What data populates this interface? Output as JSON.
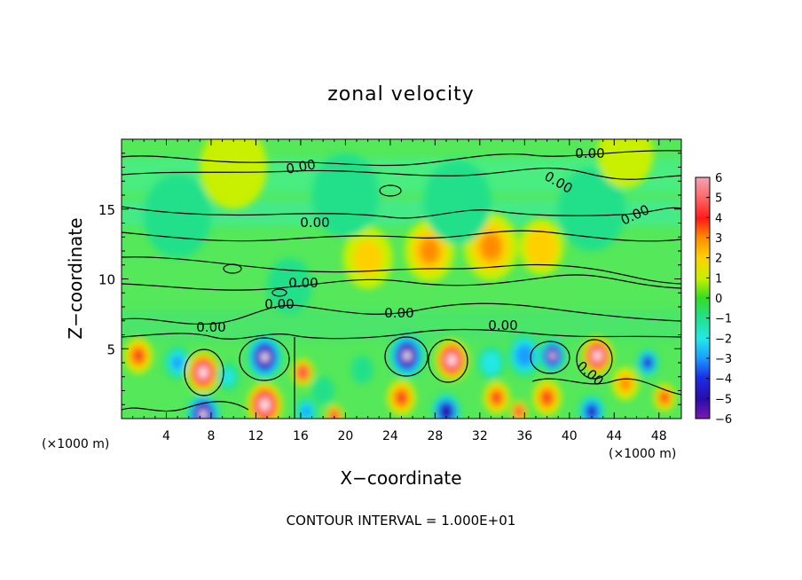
{
  "chart_data": {
    "type": "heatmap",
    "title": "zonal velocity",
    "xlabel": "X−coordinate",
    "ylabel": "Z−coordinate",
    "x_unit_left": "(×1000 m)",
    "x_unit_right": "(×1000 m)",
    "footer": "CONTOUR INTERVAL = 1.000E+01",
    "xlim": [
      0,
      50
    ],
    "ylim": [
      0,
      20
    ],
    "x_ticks": [
      4,
      8,
      12,
      16,
      20,
      24,
      28,
      32,
      36,
      40,
      44,
      48
    ],
    "y_ticks": [
      5,
      10,
      15
    ],
    "colorbar": {
      "range": [
        -6,
        6
      ],
      "ticks": [
        6,
        5,
        4,
        3,
        2,
        1,
        0,
        -1,
        -2,
        -3,
        -4,
        -5,
        -6
      ],
      "tick_labels": [
        "6",
        "5",
        "4",
        "3",
        "2",
        "1",
        "0",
        "−1",
        "−2",
        "−3",
        "−4",
        "−5",
        "−6"
      ]
    },
    "contour_label": "0.00",
    "contour_label_count": 13,
    "blobs": [
      {
        "x": 1.5,
        "z": 4.5,
        "v": 3.5,
        "r": 1.3
      },
      {
        "x": 5.0,
        "z": 4.0,
        "v": -3.0,
        "r": 1.2
      },
      {
        "x": 7.3,
        "z": 3.3,
        "v": 6.5,
        "r": 1.5
      },
      {
        "x": 7.3,
        "z": 0.3,
        "v": -6.5,
        "r": 1.5
      },
      {
        "x": 9.5,
        "z": 3.0,
        "v": -2.0,
        "r": 1.0
      },
      {
        "x": 12.8,
        "z": 4.4,
        "v": -6.5,
        "r": 1.6
      },
      {
        "x": 12.8,
        "z": 1.0,
        "v": 6.5,
        "r": 1.6
      },
      {
        "x": 16.2,
        "z": 3.3,
        "v": 4.5,
        "r": 1.0
      },
      {
        "x": 16.5,
        "z": 0.5,
        "v": -3.0,
        "r": 1.0
      },
      {
        "x": 18.0,
        "z": 2.0,
        "v": -1.5,
        "r": 1.0
      },
      {
        "x": 19.0,
        "z": 0.2,
        "v": 5.0,
        "r": 0.8
      },
      {
        "x": 21.5,
        "z": 3.5,
        "v": -1.5,
        "r": 1.0
      },
      {
        "x": 25.5,
        "z": 4.5,
        "v": -6.5,
        "r": 1.6
      },
      {
        "x": 25.0,
        "z": 1.5,
        "v": 4.0,
        "r": 1.3
      },
      {
        "x": 29.5,
        "z": 4.2,
        "v": 6.5,
        "r": 1.5
      },
      {
        "x": 29.0,
        "z": 0.5,
        "v": -5.5,
        "r": 1.3
      },
      {
        "x": 33.0,
        "z": 4.0,
        "v": -2.5,
        "r": 1.2
      },
      {
        "x": 33.5,
        "z": 1.5,
        "v": 4.0,
        "r": 1.2
      },
      {
        "x": 35.5,
        "z": 0.5,
        "v": 5.0,
        "r": 0.8
      },
      {
        "x": 36.0,
        "z": 4.5,
        "v": -3.5,
        "r": 1.5
      },
      {
        "x": 38.5,
        "z": 4.5,
        "v": -6.5,
        "r": 1.2
      },
      {
        "x": 38.0,
        "z": 1.5,
        "v": 4.0,
        "r": 1.3
      },
      {
        "x": 42.5,
        "z": 4.5,
        "v": 6.5,
        "r": 1.4
      },
      {
        "x": 42.0,
        "z": 0.5,
        "v": -5.0,
        "r": 1.2
      },
      {
        "x": 45.0,
        "z": 2.5,
        "v": 3.0,
        "r": 1.2
      },
      {
        "x": 47.0,
        "z": 4.0,
        "v": -5.0,
        "r": 1.0
      },
      {
        "x": 48.5,
        "z": 1.5,
        "v": 3.5,
        "r": 1.0
      },
      {
        "x": 22.0,
        "z": 11.5,
        "v": 2.0,
        "r": 2.2
      },
      {
        "x": 27.5,
        "z": 12.0,
        "v": 2.5,
        "r": 2.2
      },
      {
        "x": 33.0,
        "z": 12.3,
        "v": 3.0,
        "r": 2.4
      },
      {
        "x": 37.5,
        "z": 12.3,
        "v": 2.2,
        "r": 2.0
      },
      {
        "x": 15.0,
        "z": 9.5,
        "v": -1.2,
        "r": 2.0
      },
      {
        "x": 5.0,
        "z": 14.5,
        "v": -1.0,
        "r": 3.0
      },
      {
        "x": 20.0,
        "z": 16.0,
        "v": -1.5,
        "r": 3.0
      },
      {
        "x": 30.0,
        "z": 15.5,
        "v": -1.5,
        "r": 3.0
      },
      {
        "x": 42.0,
        "z": 15.0,
        "v": -1.3,
        "r": 3.0
      },
      {
        "x": 10.0,
        "z": 18.0,
        "v": 0.8,
        "r": 3.0
      },
      {
        "x": 45.0,
        "z": 19.0,
        "v": 0.8,
        "r": 2.5
      }
    ]
  }
}
